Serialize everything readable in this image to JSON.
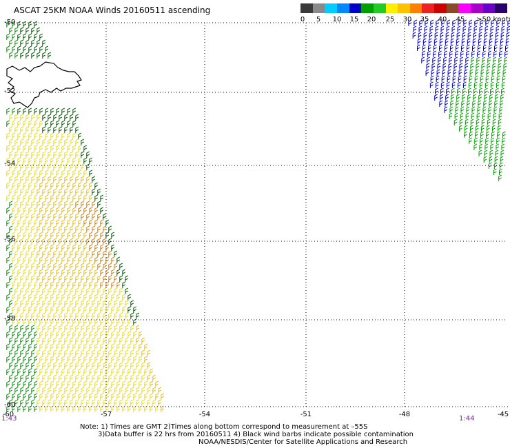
{
  "title": "ASCAT 25KM NOAA Winds 20160511 ascending",
  "legend": {
    "labels": [
      "0",
      "5",
      "10",
      "15",
      "20",
      "25",
      "30",
      "35",
      "40",
      "45",
      ">50 knots"
    ],
    "colors": [
      "#3a3a3a",
      "#8a8a8a",
      "#00ccff",
      "#0088ff",
      "#0000cc",
      "#00a000",
      "#22cc22",
      "#ffee00",
      "#ffc000",
      "#ff8000",
      "#ee2020",
      "#cc0000",
      "#8a4a2a",
      "#ff00ff",
      "#aa00cc",
      "#6a00cc",
      "#2a006a"
    ]
  },
  "axes": {
    "lat_labels": [
      "-50",
      "-52",
      "-54",
      "-56",
      "-58",
      "-60"
    ],
    "lon_labels": [
      "-60",
      "-57",
      "-54",
      "-51",
      "-48",
      "-45"
    ]
  },
  "times": {
    "left": "1:43",
    "right": "1:44"
  },
  "notes": {
    "line1": "Note: 1) Times are GMT 2)Times along bottom correspond to measurement at –55S",
    "line2": "3)Data buffer is 22 hrs from 20160511 4) Black wind barbs indicate possible contamination",
    "line3": "NOAA/NESDIS/Center for Satellite Applications and Research"
  },
  "wind_palette": {
    "green": "#00a000",
    "darkgreen": "#006400",
    "yellow": "#f0e000",
    "gold": "#f0c000",
    "orange": "#e08000",
    "blue": "#0000cc"
  },
  "land_outline_color": "#000000"
}
